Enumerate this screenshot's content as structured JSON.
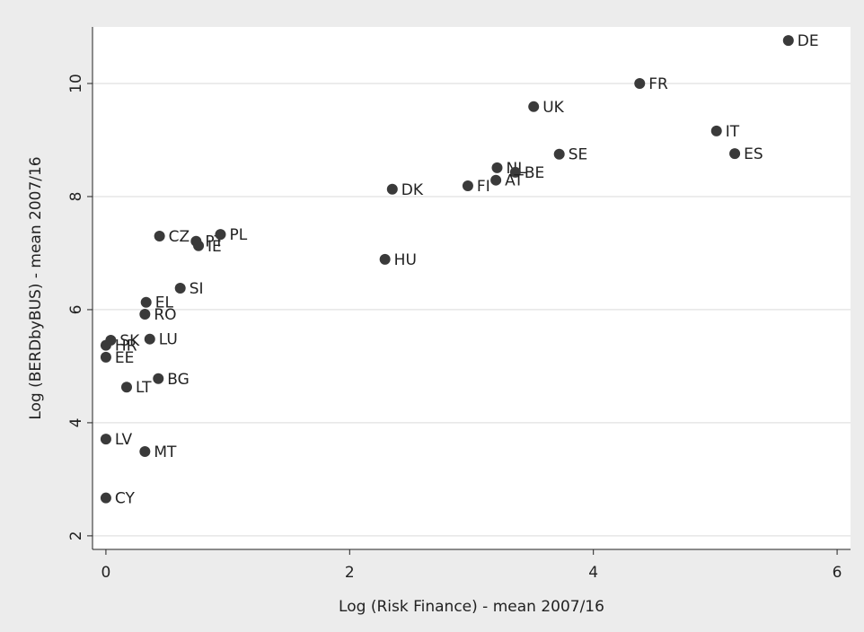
{
  "chart_data": {
    "type": "scatter",
    "x_label": "Log (Risk Finance) - mean 2007/16",
    "y_label": "Log (BERDbyBUS) - mean 2007/16",
    "color": "#3a3a3a",
    "grid": true,
    "xlim": [
      -0.11,
      6.11
    ],
    "ylim": [
      1.76,
      11.0
    ],
    "xticks": [
      0,
      2,
      4,
      6
    ],
    "yticks": [
      2,
      4,
      6,
      8,
      10
    ],
    "points": [
      {
        "label": "DE",
        "x": 5.6,
        "y": 10.76
      },
      {
        "label": "FR",
        "x": 4.38,
        "y": 10.0
      },
      {
        "label": "UK",
        "x": 3.51,
        "y": 9.59
      },
      {
        "label": "IT",
        "x": 5.01,
        "y": 9.16
      },
      {
        "label": "ES",
        "x": 5.16,
        "y": 8.76
      },
      {
        "label": "SE",
        "x": 3.72,
        "y": 8.75
      },
      {
        "label": "NL",
        "x": 3.21,
        "y": 8.51
      },
      {
        "label": "BE",
        "x": 3.36,
        "y": 8.43
      },
      {
        "label": "AT",
        "x": 3.2,
        "y": 8.29
      },
      {
        "label": "FI",
        "x": 2.97,
        "y": 8.19
      },
      {
        "label": "DK",
        "x": 2.35,
        "y": 8.13
      },
      {
        "label": "HU",
        "x": 2.29,
        "y": 6.89
      },
      {
        "label": "CZ",
        "x": 0.44,
        "y": 7.3
      },
      {
        "label": "PT",
        "x": 0.74,
        "y": 7.21
      },
      {
        "label": "IE",
        "x": 0.76,
        "y": 7.13
      },
      {
        "label": "PL",
        "x": 0.94,
        "y": 7.33
      },
      {
        "label": "SI",
        "x": 0.61,
        "y": 6.38
      },
      {
        "label": "EL",
        "x": 0.33,
        "y": 6.13
      },
      {
        "label": "RO",
        "x": 0.32,
        "y": 5.92
      },
      {
        "label": "LU",
        "x": 0.36,
        "y": 5.48
      },
      {
        "label": "SK",
        "x": 0.04,
        "y": 5.46
      },
      {
        "label": "HR",
        "x": 0.0,
        "y": 5.37
      },
      {
        "label": "EE",
        "x": 0.0,
        "y": 5.16
      },
      {
        "label": "BG",
        "x": 0.43,
        "y": 4.78
      },
      {
        "label": "LT",
        "x": 0.17,
        "y": 4.63
      },
      {
        "label": "LV",
        "x": 0.0,
        "y": 3.71
      },
      {
        "label": "MT",
        "x": 0.32,
        "y": 3.49
      },
      {
        "label": "CY",
        "x": 0.0,
        "y": 2.67
      }
    ]
  }
}
